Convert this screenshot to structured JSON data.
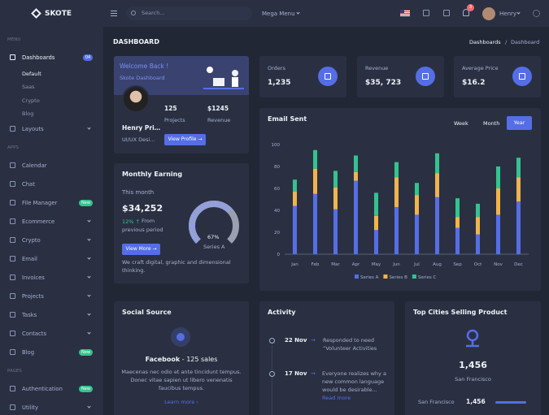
{
  "topbar": {
    "logo": "SKOTE",
    "search": "Search...",
    "mega_menu": "Mega Menu",
    "notifications": "3",
    "user": "Henry"
  },
  "sidebar": {
    "sections": [
      {
        "title": "MENU",
        "items": [
          {
            "label": "Dashboards",
            "badge": "04",
            "children": [
              "Default",
              "Saas",
              "Crypto",
              "Blog"
            ]
          },
          {
            "label": "Layouts",
            "submenu": true
          }
        ]
      },
      {
        "title": "APPS",
        "items": [
          {
            "label": "Calendar"
          },
          {
            "label": "Chat"
          },
          {
            "label": "File Manager",
            "badge": "New"
          },
          {
            "label": "Ecommerce",
            "submenu": true
          },
          {
            "label": "Crypto",
            "submenu": true
          },
          {
            "label": "Email",
            "submenu": true
          },
          {
            "label": "Invoices",
            "submenu": true
          },
          {
            "label": "Projects",
            "submenu": true
          },
          {
            "label": "Tasks",
            "submenu": true
          },
          {
            "label": "Contacts",
            "submenu": true
          },
          {
            "label": "Blog",
            "badge": "New"
          }
        ]
      },
      {
        "title": "PAGES",
        "items": [
          {
            "label": "Authentication",
            "badge": "New"
          },
          {
            "label": "Utility",
            "submenu": true
          }
        ]
      }
    ]
  },
  "page": {
    "title": "DASHBOARD",
    "breadcrumb": [
      "Dashboards",
      "Dashboard"
    ]
  },
  "welcome": {
    "title": "Welcome Back !",
    "subtitle": "Skote Dashboard",
    "name": "Henry Pri…",
    "role": "UI/UX Desi…",
    "projects": "125",
    "projects_label": "Projects",
    "revenue": "$1245",
    "revenue_label": "Revenue",
    "button": "View Profile"
  },
  "stats": [
    {
      "label": "Orders",
      "value": "1,235"
    },
    {
      "label": "Revenue",
      "value": "$35, 723"
    },
    {
      "label": "Average Price",
      "value": "$16.2"
    }
  ],
  "monthly_earning": {
    "title": "Monthly Earning",
    "period": "This month",
    "amount": "$34,252",
    "change": "12%",
    "comparison": "From previous period",
    "button": "View More",
    "gauge": {
      "value": 67,
      "label": "67%",
      "name": "Series A"
    },
    "footer": "We craft digital, graphic and dimensional thinking."
  },
  "chart_data": {
    "type": "bar",
    "stacked": true,
    "title": "Email Sent",
    "tabs": [
      "Week",
      "Month",
      "Year"
    ],
    "categories": [
      "Jan",
      "Feb",
      "Mar",
      "Apr",
      "May",
      "Jun",
      "Jul",
      "Aug",
      "Sep",
      "Oct",
      "Nov",
      "Dec"
    ],
    "series": [
      {
        "name": "Series A",
        "color": "#556ee6",
        "values": [
          44,
          55,
          41,
          67,
          22,
          43,
          36,
          52,
          24,
          18,
          36,
          48
        ]
      },
      {
        "name": "Series B",
        "color": "#f1b44c",
        "values": [
          13,
          23,
          20,
          8,
          13,
          27,
          18,
          22,
          10,
          16,
          24,
          22
        ]
      },
      {
        "name": "Series C",
        "color": "#34c38f",
        "values": [
          11,
          17,
          15,
          15,
          21,
          14,
          11,
          18,
          17,
          12,
          20,
          18
        ]
      }
    ],
    "ylim": [
      0,
      100
    ],
    "yticks": [
      0,
      20,
      40,
      60,
      80,
      100
    ],
    "grid": false
  },
  "social_source": {
    "title": "Social Source",
    "network": "Facebook",
    "sales": "- 125 sales",
    "text": "Maecenas nec odio et ante tincidunt tempus. Donec vitae sapien ut libero venenatis faucibus tempus.",
    "link": "Learn more"
  },
  "activity": {
    "title": "Activity",
    "items": [
      {
        "date": "22 Nov",
        "text": "Responded to need “Volunteer Activities"
      },
      {
        "date": "17 Nov",
        "text": "Everyone realizes why a new common language would be desirable...",
        "link": "Read more"
      }
    ]
  },
  "top_cities": {
    "title": "Top Cities Selling Product",
    "total": "1,456",
    "city": "San Francisco",
    "rows": [
      {
        "city": "San Francisco",
        "value": "1,456"
      }
    ]
  }
}
